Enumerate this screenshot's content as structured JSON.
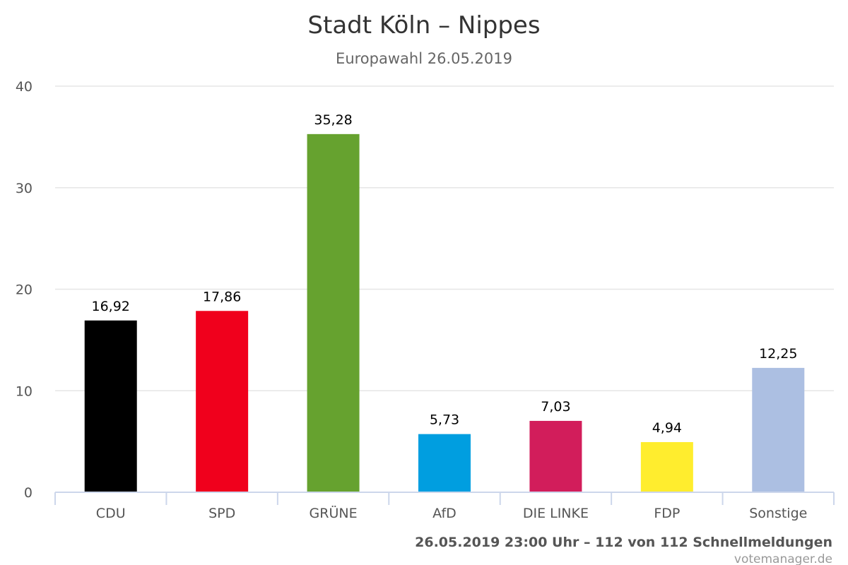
{
  "chart_data": {
    "type": "bar",
    "title": "Stadt Köln – Nippes",
    "subtitle": "Europawahl 26.05.2019",
    "categories": [
      "CDU",
      "SPD",
      "GRÜNE",
      "AfD",
      "DIE LINKE",
      "FDP",
      "Sonstige"
    ],
    "values": [
      16.92,
      17.86,
      35.28,
      5.73,
      7.03,
      4.94,
      12.25
    ],
    "data_labels": [
      "16,92",
      "17,86",
      "35,28",
      "5,73",
      "7,03",
      "4,94",
      "12,25"
    ],
    "colors": [
      "#000000",
      "#f0001c",
      "#66a22f",
      "#009ee0",
      "#d21d5b",
      "#ffed2e",
      "#acbfe2"
    ],
    "ylim": [
      0,
      40
    ],
    "yticks": [
      0,
      10,
      20,
      30,
      40
    ],
    "grid": true,
    "legend": "none"
  },
  "footer": {
    "status": "26.05.2019 23:00 Uhr – 112 von 112 Schnellmeldungen",
    "credits": "votemanager.de"
  }
}
